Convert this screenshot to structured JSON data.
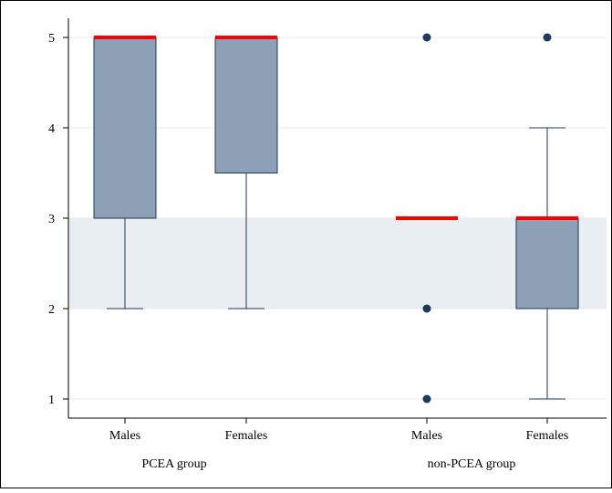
{
  "chart_data": {
    "type": "box",
    "ylim": [
      0.8,
      5.2
    ],
    "yticks": [
      1,
      2,
      3,
      4,
      5
    ],
    "bands": [
      {
        "from": 2,
        "to": 3,
        "color": "#e9eef2"
      }
    ],
    "groups": [
      {
        "label": "PCEA group"
      },
      {
        "label": "non-PCEA group"
      }
    ],
    "boxes": [
      {
        "group": 0,
        "category": "Males",
        "whisker_low": 2,
        "q1": 3,
        "median": 5,
        "q3": 5,
        "whisker_high": 5,
        "outliers": []
      },
      {
        "group": 0,
        "category": "Females",
        "whisker_low": 2,
        "q1": 3.5,
        "median": 5,
        "q3": 5,
        "whisker_high": 5,
        "outliers": []
      },
      {
        "group": 1,
        "category": "Males",
        "whisker_low": 3,
        "q1": 3,
        "median": 3,
        "q3": 3,
        "whisker_high": 3,
        "outliers": [
          5,
          2,
          1
        ]
      },
      {
        "group": 1,
        "category": "Females",
        "whisker_low": 1,
        "q1": 2,
        "median": 3,
        "q3": 3,
        "whisker_high": 4,
        "outliers": [
          5
        ]
      }
    ],
    "colors": {
      "box_fill": "#8da0b6",
      "box_stroke": "#1c3b5a",
      "median": "#ff0000",
      "outlier": "#1c3b5a",
      "grid": "#e6eaee",
      "axis": "#000000",
      "frame": "#000000",
      "background": "#ffffff"
    },
    "grid": true
  }
}
